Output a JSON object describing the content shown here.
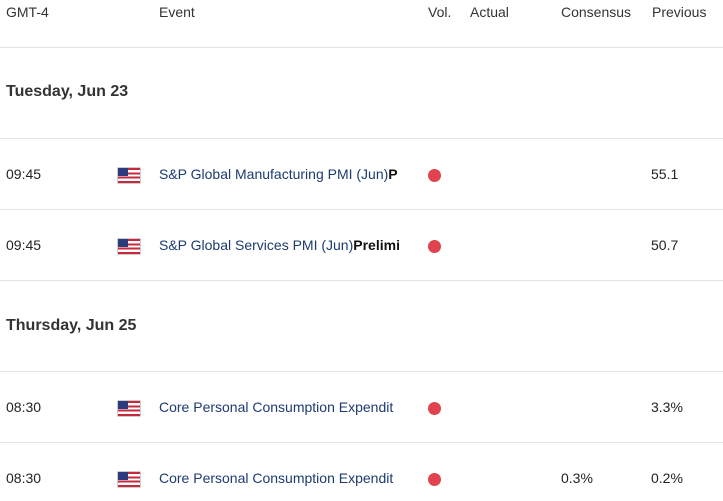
{
  "header": {
    "timezone": "GMT-4",
    "event": "Event",
    "vol": "Vol.",
    "actual": "Actual",
    "consensus": "Consensus",
    "previous": "Previous"
  },
  "colors": {
    "volatility_high": "#e0434f",
    "event_link": "#1d3b70"
  },
  "days": [
    {
      "label": "Tuesday, Jun 23",
      "events": [
        {
          "time": "09:45",
          "country_icon": "us-flag-icon",
          "title": "S&P Global Manufacturing PMI (Jun)",
          "suffix": "P",
          "actual": "",
          "consensus": "",
          "previous": "55.1"
        },
        {
          "time": "09:45",
          "country_icon": "us-flag-icon",
          "title": "S&P Global Services PMI (Jun)",
          "suffix": "Prelimi",
          "actual": "",
          "consensus": "",
          "previous": "50.7"
        }
      ]
    },
    {
      "label": "Thursday, Jun 25",
      "events": [
        {
          "time": "08:30",
          "country_icon": "us-flag-icon",
          "title": "Core Personal Consumption Expendit",
          "suffix": "",
          "actual": "",
          "consensus": "",
          "previous": "3.3%"
        },
        {
          "time": "08:30",
          "country_icon": "us-flag-icon",
          "title": "Core Personal Consumption Expendit",
          "suffix": "",
          "actual": "",
          "consensus": "0.3%",
          "previous": "0.2%"
        }
      ]
    }
  ]
}
